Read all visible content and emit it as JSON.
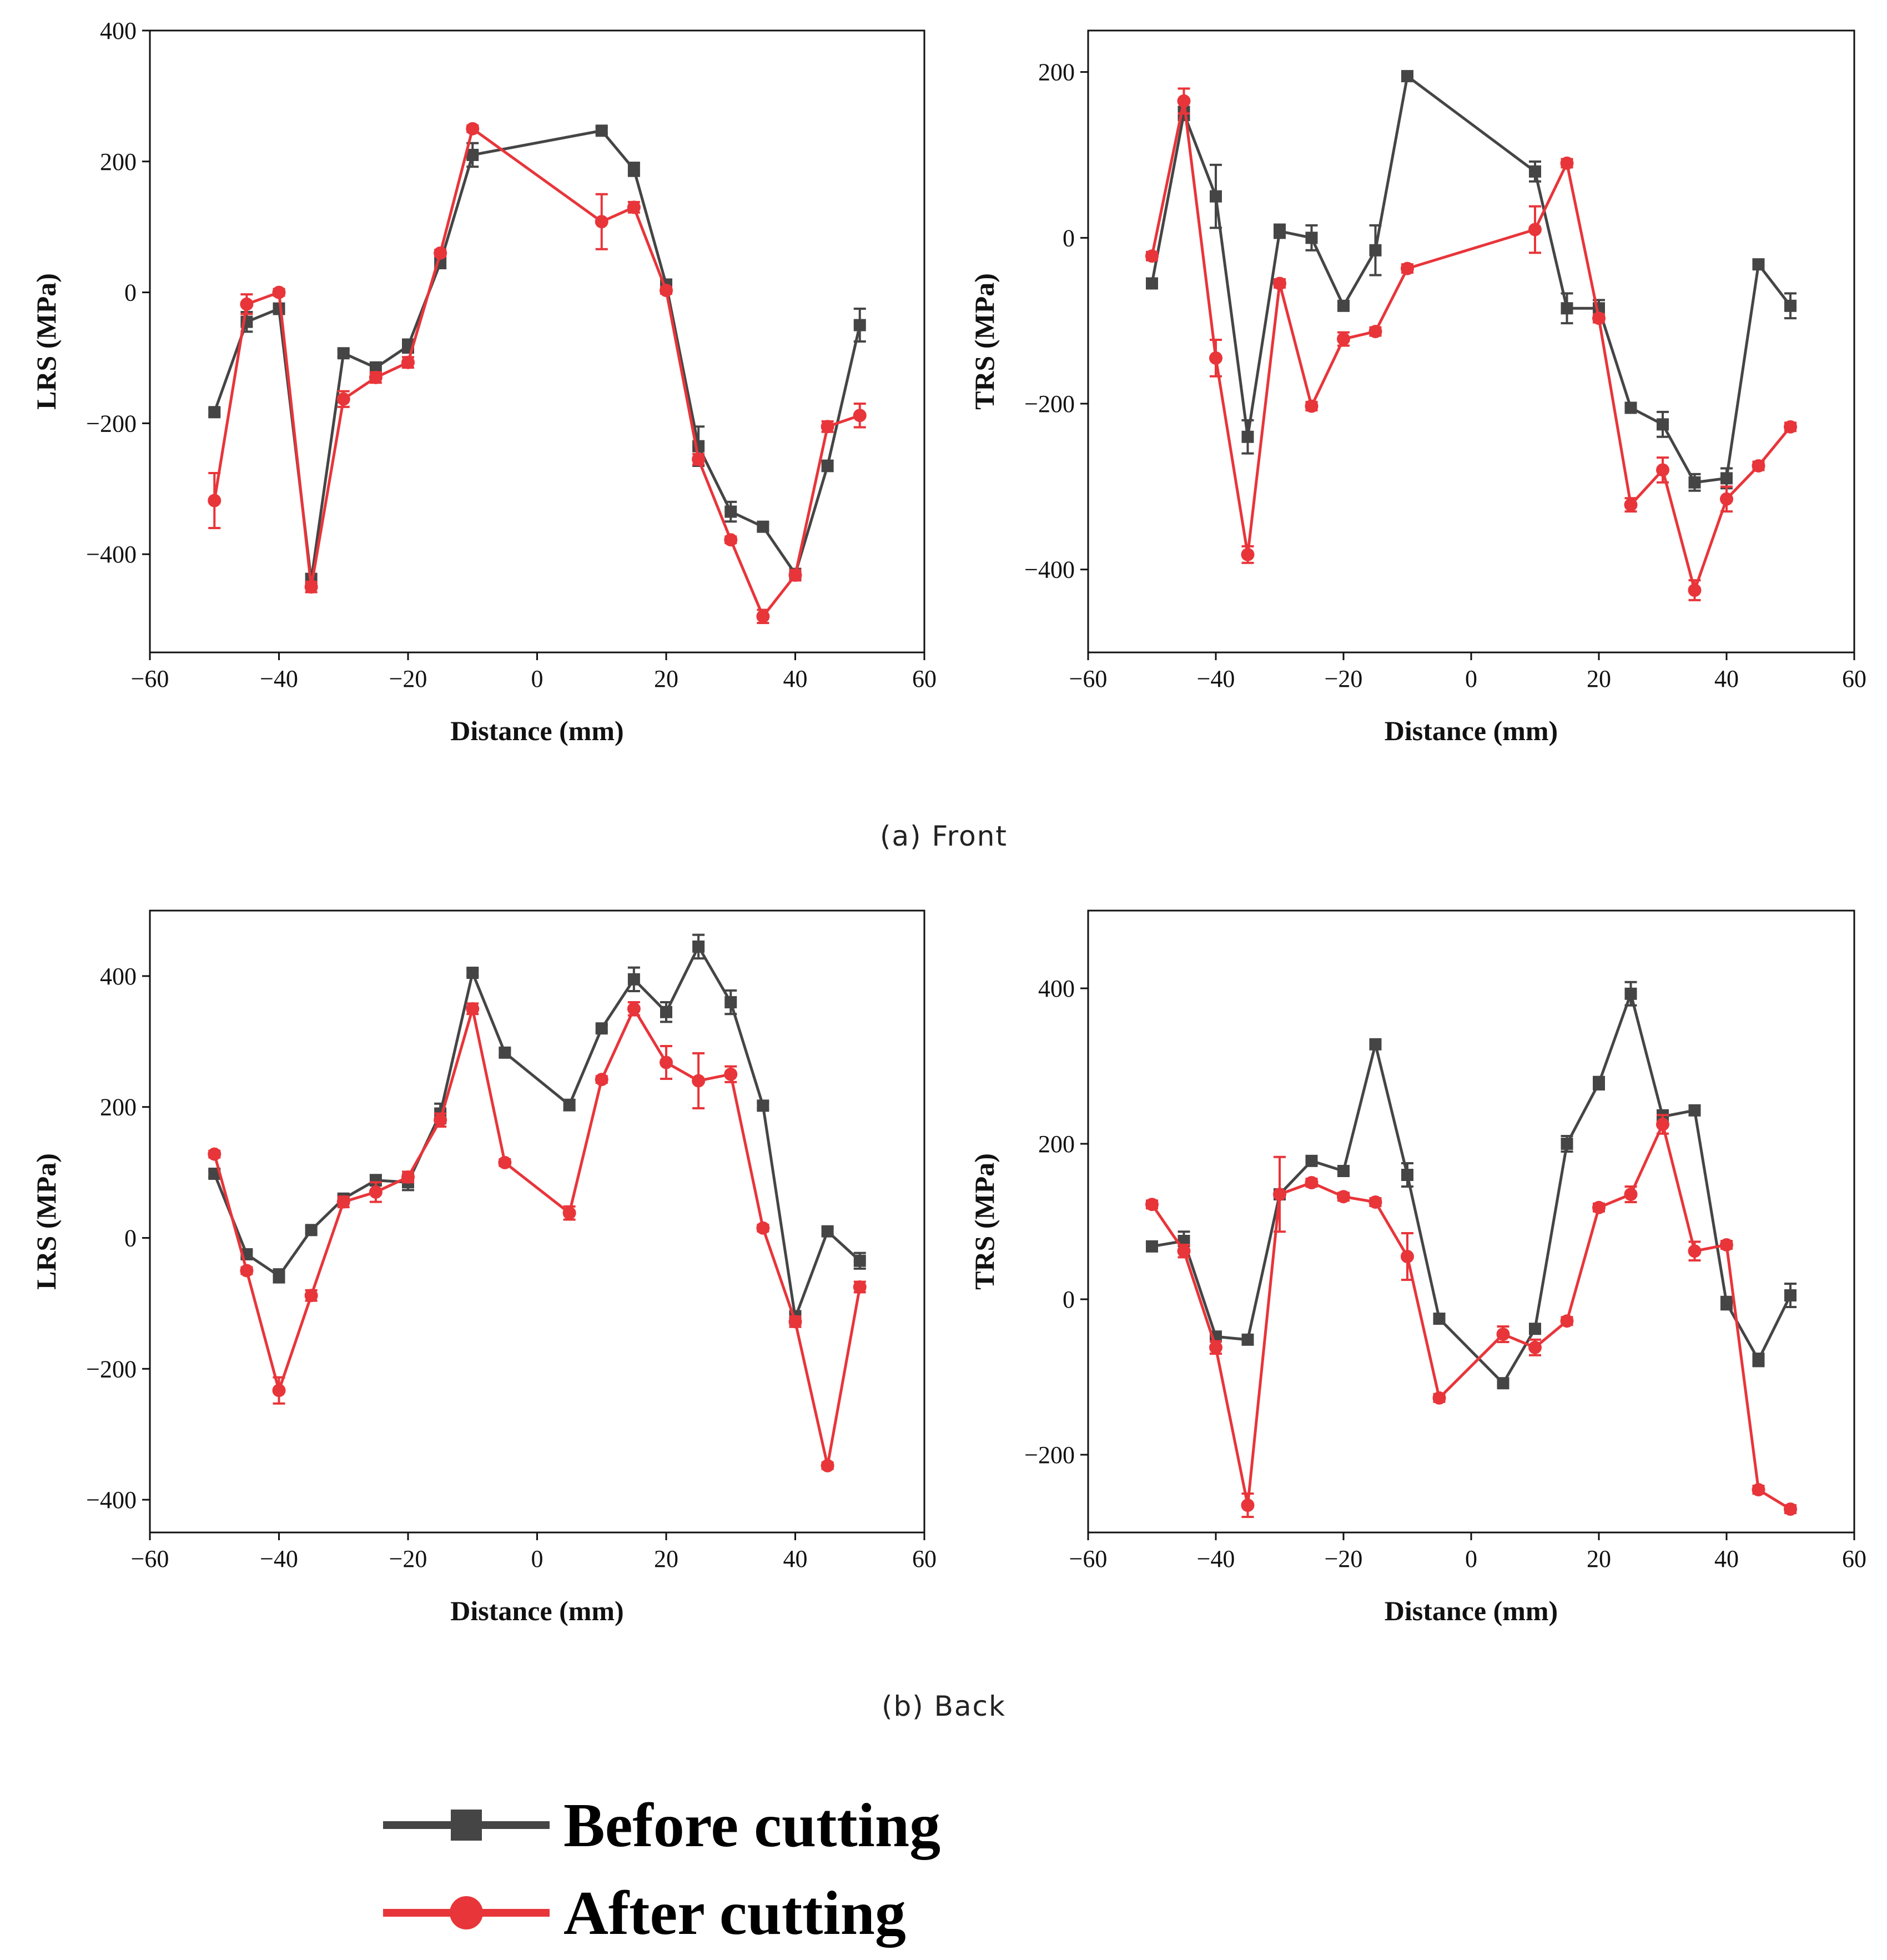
{
  "figure": {
    "captions": [
      "(a) Front",
      "(b) Back"
    ],
    "legend": [
      {
        "label": "Before cutting",
        "color": "#454545",
        "marker": "square"
      },
      {
        "label": "After cutting",
        "color": "#e8353a",
        "marker": "circle"
      }
    ]
  },
  "chart_data": [
    {
      "type": "line",
      "panel": "front-lrs",
      "xlabel": "Distance (mm)",
      "ylabel": "LRS (MPa)",
      "xlim": [
        -60,
        60
      ],
      "ylim": [
        -550,
        400
      ],
      "xticks": [
        -60,
        -40,
        -20,
        0,
        20,
        40,
        60
      ],
      "yticks": [
        -400,
        -200,
        0,
        200,
        400
      ],
      "series": [
        {
          "name": "Before cutting",
          "color": "#454545",
          "marker": "square",
          "x": [
            -50,
            -45,
            -40,
            -35,
            -30,
            -25,
            -20,
            -15,
            -10,
            10,
            15,
            20,
            25,
            30,
            35,
            40,
            45,
            50
          ],
          "y": [
            -183,
            -45,
            -25,
            -440,
            -93,
            -115,
            -82,
            45,
            210,
            247,
            188,
            12,
            -235,
            -335,
            -358,
            -430,
            -265,
            -50
          ],
          "err": [
            5,
            15,
            8,
            10,
            5,
            8,
            10,
            8,
            18,
            5,
            10,
            5,
            30,
            15,
            5,
            5,
            8,
            25
          ]
        },
        {
          "name": "After cutting",
          "color": "#e8353a",
          "marker": "circle",
          "x": [
            -50,
            -45,
            -40,
            -35,
            -30,
            -25,
            -20,
            -15,
            -10,
            10,
            15,
            20,
            25,
            30,
            35,
            40,
            45,
            50
          ],
          "y": [
            -318,
            -18,
            0,
            -450,
            -163,
            -130,
            -107,
            60,
            250,
            108,
            130,
            3,
            -255,
            -378,
            -495,
            -432,
            -205,
            -188
          ],
          "err": [
            42,
            15,
            5,
            8,
            12,
            8,
            8,
            5,
            5,
            42,
            8,
            5,
            8,
            5,
            10,
            8,
            8,
            18
          ]
        }
      ]
    },
    {
      "type": "line",
      "panel": "front-trs",
      "xlabel": "Distance (mm)",
      "ylabel": "TRS (MPa)",
      "xlim": [
        -60,
        60
      ],
      "ylim": [
        -500,
        250
      ],
      "xticks": [
        -60,
        -40,
        -20,
        0,
        20,
        40,
        60
      ],
      "yticks": [
        -400,
        -200,
        0,
        200
      ],
      "series": [
        {
          "name": "Before cutting",
          "color": "#454545",
          "marker": "square",
          "x": [
            -50,
            -45,
            -40,
            -35,
            -30,
            -25,
            -20,
            -15,
            -10,
            10,
            15,
            20,
            25,
            30,
            35,
            40,
            45,
            50
          ],
          "y": [
            -55,
            150,
            50,
            -240,
            8,
            0,
            -82,
            -15,
            195,
            80,
            -85,
            -85,
            -205,
            -225,
            -295,
            -290,
            -32,
            -82
          ],
          "err": [
            5,
            8,
            38,
            20,
            8,
            15,
            5,
            30,
            5,
            12,
            18,
            10,
            5,
            15,
            10,
            12,
            5,
            15
          ]
        },
        {
          "name": "After cutting",
          "color": "#e8353a",
          "marker": "circle",
          "x": [
            -50,
            -45,
            -40,
            -35,
            -30,
            -25,
            -20,
            -15,
            -10,
            10,
            15,
            20,
            25,
            30,
            35,
            40,
            45,
            50
          ],
          "y": [
            -22,
            165,
            -145,
            -382,
            -55,
            -203,
            -122,
            -113,
            -37,
            10,
            90,
            -97,
            -322,
            -280,
            -425,
            -315,
            -275,
            -228
          ],
          "err": [
            5,
            15,
            22,
            10,
            5,
            5,
            8,
            5,
            5,
            28,
            5,
            5,
            8,
            15,
            12,
            15,
            5,
            5
          ]
        }
      ]
    },
    {
      "type": "line",
      "panel": "back-lrs",
      "xlabel": "Distance (mm)",
      "ylabel": "LRS (MPa)",
      "xlim": [
        -60,
        60
      ],
      "ylim": [
        -450,
        500
      ],
      "xticks": [
        -60,
        -40,
        -20,
        0,
        20,
        40,
        60
      ],
      "yticks": [
        -400,
        -200,
        0,
        200,
        400
      ],
      "series": [
        {
          "name": "Before cutting",
          "color": "#454545",
          "marker": "square",
          "x": [
            -50,
            -45,
            -40,
            -35,
            -30,
            -25,
            -20,
            -15,
            -10,
            -5,
            5,
            10,
            15,
            20,
            25,
            30,
            35,
            40,
            45,
            50
          ],
          "y": [
            98,
            -25,
            -58,
            12,
            60,
            88,
            85,
            190,
            405,
            283,
            203,
            320,
            395,
            345,
            445,
            360,
            202,
            -122,
            10,
            -35
          ],
          "err": [
            5,
            5,
            10,
            5,
            5,
            8,
            12,
            15,
            5,
            5,
            8,
            5,
            18,
            15,
            18,
            18,
            5,
            10,
            5,
            12
          ]
        },
        {
          "name": "After cutting",
          "color": "#e8353a",
          "marker": "circle",
          "x": [
            -50,
            -45,
            -40,
            -35,
            -30,
            -25,
            -20,
            -15,
            -10,
            -5,
            5,
            10,
            15,
            20,
            25,
            30,
            35,
            40,
            45,
            50
          ],
          "y": [
            128,
            -50,
            -233,
            -88,
            55,
            70,
            93,
            180,
            350,
            115,
            38,
            242,
            350,
            268,
            240,
            250,
            15,
            -128,
            -348,
            -75
          ],
          "err": [
            5,
            5,
            20,
            8,
            8,
            15,
            8,
            10,
            8,
            5,
            10,
            5,
            10,
            25,
            42,
            12,
            5,
            8,
            5,
            8
          ]
        }
      ]
    },
    {
      "type": "line",
      "panel": "back-trs",
      "xlabel": "Distance (mm)",
      "ylabel": "TRS (MPa)",
      "xlim": [
        -60,
        60
      ],
      "ylim": [
        -300,
        500
      ],
      "xticks": [
        -60,
        -40,
        -20,
        0,
        20,
        40,
        60
      ],
      "yticks": [
        -200,
        0,
        200,
        400
      ],
      "series": [
        {
          "name": "Before cutting",
          "color": "#454545",
          "marker": "square",
          "x": [
            -50,
            -45,
            -40,
            -35,
            -30,
            -25,
            -20,
            -15,
            -10,
            -5,
            5,
            10,
            15,
            20,
            25,
            30,
            35,
            40,
            45,
            50
          ],
          "y": [
            68,
            75,
            -48,
            -52,
            135,
            178,
            165,
            328,
            160,
            -25,
            -108,
            -38,
            200,
            278,
            393,
            235,
            243,
            -5,
            -78,
            5
          ],
          "err": [
            5,
            12,
            5,
            5,
            5,
            5,
            5,
            5,
            15,
            5,
            5,
            5,
            10,
            8,
            15,
            8,
            5,
            8,
            8,
            15
          ]
        },
        {
          "name": "After cutting",
          "color": "#e8353a",
          "marker": "circle",
          "x": [
            -50,
            -45,
            -40,
            -35,
            -30,
            -25,
            -20,
            -15,
            -10,
            -5,
            5,
            10,
            15,
            20,
            25,
            30,
            35,
            40,
            45,
            50
          ],
          "y": [
            122,
            62,
            -62,
            -265,
            135,
            150,
            132,
            125,
            55,
            -127,
            -45,
            -62,
            -28,
            118,
            135,
            225,
            62,
            70,
            -245,
            -270
          ],
          "err": [
            5,
            8,
            8,
            15,
            48,
            5,
            5,
            5,
            30,
            5,
            10,
            10,
            5,
            5,
            10,
            12,
            12,
            5,
            5,
            5
          ]
        }
      ]
    }
  ]
}
